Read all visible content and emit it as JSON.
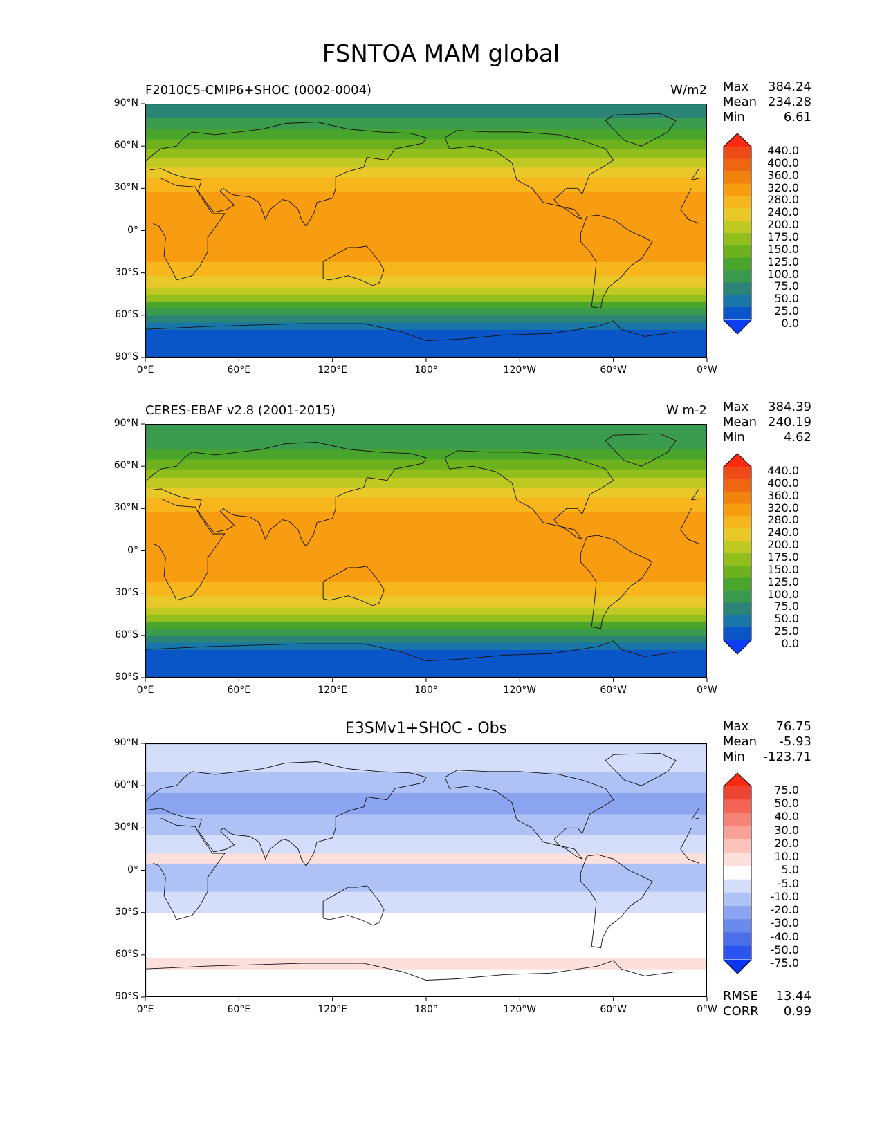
{
  "figure_title": "FSNTOA MAM global",
  "chart_data": [
    {
      "type": "heatmap",
      "left_title": "F2010C5-CMIP6+SHOC (0002-0004)",
      "right_title": "W/m2",
      "center_title": "",
      "stats": {
        "max_label": "Max",
        "max": "384.24",
        "mean_label": "Mean",
        "mean": "234.28",
        "min_label": "Min",
        "min": "6.61"
      },
      "xticks": [
        "0°E",
        "60°E",
        "120°E",
        "180°",
        "120°W",
        "60°W",
        "0°W"
      ],
      "yticks": [
        "90°N",
        "60°N",
        "30°N",
        "0°",
        "30°S",
        "60°S",
        "90°S"
      ],
      "xlim": [
        0,
        360
      ],
      "ylim": [
        -90,
        90
      ],
      "colorbar_levels": [
        "0.0",
        "25.0",
        "50.0",
        "75.0",
        "100.0",
        "125.0",
        "150.0",
        "175.0",
        "200.0",
        "240.0",
        "280.0",
        "320.0",
        "360.0",
        "400.0",
        "440.0"
      ],
      "colorbar_colors": [
        "#0c3ff5",
        "#0a55c8",
        "#1877a8",
        "#2a8576",
        "#3a9a4e",
        "#4aa52c",
        "#6db11f",
        "#93bf1d",
        "#c0c822",
        "#e9c82a",
        "#f7b71c",
        "#f89c12",
        "#f2820e",
        "#ef6612",
        "#ef4b18",
        "#ff2a10"
      ],
      "latitude_bands": [
        {
          "lat_min": -90,
          "lat_max": -70,
          "value": 10
        },
        {
          "lat_min": -70,
          "lat_max": -65,
          "value": 40
        },
        {
          "lat_min": -65,
          "lat_max": -60,
          "value": 60
        },
        {
          "lat_min": -60,
          "lat_max": -55,
          "value": 85
        },
        {
          "lat_min": -55,
          "lat_max": -50,
          "value": 115
        },
        {
          "lat_min": -50,
          "lat_max": -45,
          "value": 160
        },
        {
          "lat_min": -45,
          "lat_max": -40,
          "value": 190
        },
        {
          "lat_min": -40,
          "lat_max": -32,
          "value": 230
        },
        {
          "lat_min": -32,
          "lat_max": -22,
          "value": 260
        },
        {
          "lat_min": -22,
          "lat_max": -10,
          "value": 290
        },
        {
          "lat_min": -10,
          "lat_max": 8,
          "value": 300
        },
        {
          "lat_min": 8,
          "lat_max": 18,
          "value": 290
        },
        {
          "lat_min": 18,
          "lat_max": 28,
          "value": 280
        },
        {
          "lat_min": 28,
          "lat_max": 38,
          "value": 250
        },
        {
          "lat_min": 38,
          "lat_max": 45,
          "value": 220
        },
        {
          "lat_min": 45,
          "lat_max": 52,
          "value": 190
        },
        {
          "lat_min": 52,
          "lat_max": 58,
          "value": 165
        },
        {
          "lat_min": 58,
          "lat_max": 65,
          "value": 135
        },
        {
          "lat_min": 65,
          "lat_max": 72,
          "value": 110
        },
        {
          "lat_min": 72,
          "lat_max": 80,
          "value": 90
        },
        {
          "lat_min": 80,
          "lat_max": 90,
          "value": 70
        }
      ],
      "rmse": null,
      "corr": null
    },
    {
      "type": "heatmap",
      "left_title": "CERES-EBAF v2.8 (2001-2015)",
      "right_title": "W m-2",
      "center_title": "",
      "stats": {
        "max_label": "Max",
        "max": "384.39",
        "mean_label": "Mean",
        "mean": "240.19",
        "min_label": "Min",
        "min": "4.62"
      },
      "xticks": [
        "0°E",
        "60°E",
        "120°E",
        "180°",
        "120°W",
        "60°W",
        "0°W"
      ],
      "yticks": [
        "90°N",
        "60°N",
        "30°N",
        "0°",
        "30°S",
        "60°S",
        "90°S"
      ],
      "xlim": [
        0,
        360
      ],
      "ylim": [
        -90,
        90
      ],
      "colorbar_levels": [
        "0.0",
        "25.0",
        "50.0",
        "75.0",
        "100.0",
        "125.0",
        "150.0",
        "175.0",
        "200.0",
        "240.0",
        "280.0",
        "320.0",
        "360.0",
        "400.0",
        "440.0"
      ],
      "colorbar_colors": [
        "#0c3ff5",
        "#0a55c8",
        "#1877a8",
        "#2a8576",
        "#3a9a4e",
        "#4aa52c",
        "#6db11f",
        "#93bf1d",
        "#c0c822",
        "#e9c82a",
        "#f7b71c",
        "#f89c12",
        "#f2820e",
        "#ef6612",
        "#ef4b18",
        "#ff2a10"
      ],
      "latitude_bands": [
        {
          "lat_min": -90,
          "lat_max": -70,
          "value": 10
        },
        {
          "lat_min": -70,
          "lat_max": -65,
          "value": 40
        },
        {
          "lat_min": -65,
          "lat_max": -60,
          "value": 60
        },
        {
          "lat_min": -60,
          "lat_max": -55,
          "value": 85
        },
        {
          "lat_min": -55,
          "lat_max": -50,
          "value": 120
        },
        {
          "lat_min": -50,
          "lat_max": -45,
          "value": 160
        },
        {
          "lat_min": -45,
          "lat_max": -40,
          "value": 195
        },
        {
          "lat_min": -40,
          "lat_max": -32,
          "value": 235
        },
        {
          "lat_min": -32,
          "lat_max": -22,
          "value": 265
        },
        {
          "lat_min": -22,
          "lat_max": -10,
          "value": 295
        },
        {
          "lat_min": -10,
          "lat_max": 8,
          "value": 305
        },
        {
          "lat_min": 8,
          "lat_max": 18,
          "value": 310
        },
        {
          "lat_min": 18,
          "lat_max": 28,
          "value": 285
        },
        {
          "lat_min": 28,
          "lat_max": 38,
          "value": 255
        },
        {
          "lat_min": 38,
          "lat_max": 45,
          "value": 225
        },
        {
          "lat_min": 45,
          "lat_max": 52,
          "value": 195
        },
        {
          "lat_min": 52,
          "lat_max": 58,
          "value": 165
        },
        {
          "lat_min": 58,
          "lat_max": 65,
          "value": 130
        },
        {
          "lat_min": 65,
          "lat_max": 72,
          "value": 105
        },
        {
          "lat_min": 72,
          "lat_max": 80,
          "value": 90
        },
        {
          "lat_min": 80,
          "lat_max": 90,
          "value": 85
        }
      ],
      "rmse": null,
      "corr": null
    },
    {
      "type": "heatmap",
      "left_title": "",
      "right_title": "",
      "center_title": "E3SMv1+SHOC - Obs",
      "stats": {
        "max_label": "Max",
        "max": "76.75",
        "mean_label": "Mean",
        "mean": "-5.93",
        "min_label": "Min",
        "min": "-123.71"
      },
      "xticks": [
        "0°E",
        "60°E",
        "120°E",
        "180°",
        "120°W",
        "60°W",
        "0°W"
      ],
      "yticks": [
        "90°N",
        "60°N",
        "30°N",
        "0°",
        "30°S",
        "60°S",
        "90°S"
      ],
      "xlim": [
        0,
        360
      ],
      "ylim": [
        -90,
        90
      ],
      "colorbar_levels": [
        "-75.0",
        "-50.0",
        "-40.0",
        "-30.0",
        "-20.0",
        "-10.0",
        "-5.0",
        "5.0",
        "10.0",
        "20.0",
        "30.0",
        "40.0",
        "50.0",
        "75.0"
      ],
      "colorbar_colors": [
        "#0b35f0",
        "#2a55ef",
        "#4a6fe9",
        "#6a89ec",
        "#8ba4f0",
        "#afc2f6",
        "#d4ddfa",
        "#ffffff",
        "#fde0dc",
        "#fbc3bb",
        "#f8a297",
        "#f58376",
        "#f26453",
        "#ee4433",
        "#ff2a10"
      ],
      "latitude_bands": [
        {
          "lat_min": -90,
          "lat_max": -70,
          "value": 0
        },
        {
          "lat_min": -70,
          "lat_max": -62,
          "value": 7
        },
        {
          "lat_min": -62,
          "lat_max": -45,
          "value": 0
        },
        {
          "lat_min": -45,
          "lat_max": -30,
          "value": -3
        },
        {
          "lat_min": -30,
          "lat_max": -15,
          "value": -7
        },
        {
          "lat_min": -15,
          "lat_max": -5,
          "value": -15
        },
        {
          "lat_min": -5,
          "lat_max": 5,
          "value": -12
        },
        {
          "lat_min": 5,
          "lat_max": 12,
          "value": 7
        },
        {
          "lat_min": 12,
          "lat_max": 25,
          "value": -8
        },
        {
          "lat_min": 25,
          "lat_max": 40,
          "value": -15
        },
        {
          "lat_min": 40,
          "lat_max": 55,
          "value": -25
        },
        {
          "lat_min": 55,
          "lat_max": 70,
          "value": -18
        },
        {
          "lat_min": 70,
          "lat_max": 90,
          "value": -10
        }
      ],
      "rmse": {
        "label": "RMSE",
        "value": "13.44"
      },
      "corr": {
        "label": "CORR",
        "value": "0.99"
      }
    }
  ]
}
